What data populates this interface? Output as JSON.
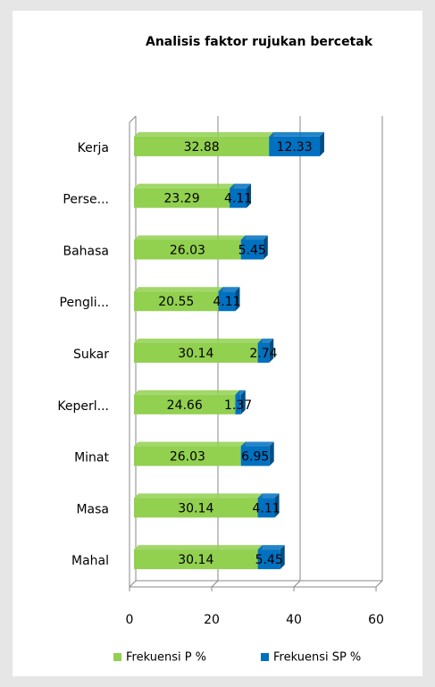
{
  "chart_data": {
    "type": "stacked-barh",
    "title": "Analisis faktor rujukan bercetak",
    "categories": [
      "Kerja",
      "Perse...",
      "Bahasa",
      "Pengli...",
      "Sukar",
      "Keperl...",
      "Minat",
      "Masa",
      "Mahal"
    ],
    "series": [
      {
        "name": "Frekuensi P %",
        "color": "#92d050",
        "values": [
          32.88,
          23.29,
          26.03,
          20.55,
          30.14,
          24.66,
          26.03,
          30.14,
          30.14
        ]
      },
      {
        "name": "Frekuensi SP %",
        "color": "#0070c0",
        "values": [
          12.33,
          4.11,
          5.45,
          4.11,
          2.74,
          1.37,
          6.95,
          4.11,
          5.45
        ]
      }
    ],
    "xlim": [
      0,
      60
    ],
    "xticks": [
      0,
      20,
      40,
      60
    ],
    "grid": true,
    "legend": "bottom"
  }
}
